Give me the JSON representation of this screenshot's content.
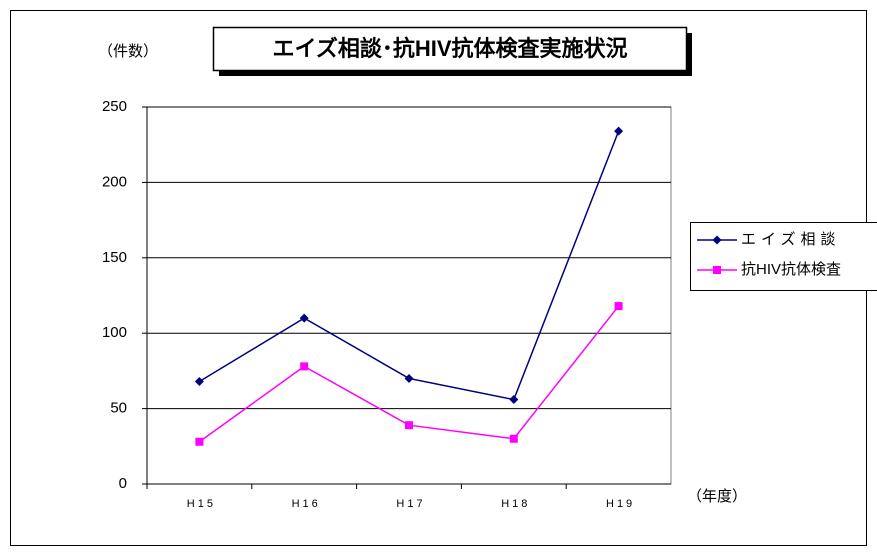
{
  "chart_data": {
    "type": "line",
    "title": "エイズ相談･抗HIV抗体検査実施状況",
    "y_label": "（件数）",
    "x_label": "（年度）",
    "categories": [
      "H15",
      "H16",
      "H17",
      "H18",
      "H19"
    ],
    "series": [
      {
        "name": "エイズ相談",
        "color": "#000080",
        "marker": "diamond",
        "values": [
          68,
          110,
          70,
          56,
          234
        ]
      },
      {
        "name": "抗HIV抗体検査",
        "color": "#ff00ff",
        "marker": "square",
        "values": [
          28,
          78,
          39,
          30,
          118
        ]
      }
    ],
    "ylim": [
      0,
      250
    ],
    "yticks": [
      0,
      50,
      100,
      150,
      200,
      250
    ],
    "grid": true,
    "legend": "right"
  }
}
